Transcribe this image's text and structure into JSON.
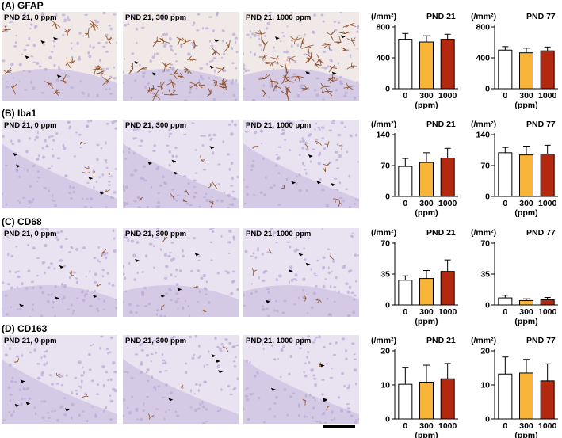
{
  "colors": {
    "c0": "#ffffff",
    "c300": "#f8b539",
    "c1000": "#b4280f",
    "stain_gfap": "#8b4a1f",
    "stain_iba1": "#7a3a18",
    "tissue_base": "#e9e3f1",
    "nuclei": "#b9acd6"
  },
  "panels": [
    {
      "label": "(A) GFAP",
      "images": [
        {
          "label": "PND 21, 0 ppm"
        },
        {
          "label": "PND 21, 300 ppm"
        },
        {
          "label": "PND 21, 1000 ppm"
        }
      ]
    },
    {
      "label": "(B) Iba1",
      "images": [
        {
          "label": "PND 21, 0 ppm"
        },
        {
          "label": "PND 21, 300 ppm"
        },
        {
          "label": "PND 21, 1000 ppm"
        }
      ]
    },
    {
      "label": "(C) CD68",
      "images": [
        {
          "label": "PND 21, 0 ppm"
        },
        {
          "label": "PND 21, 300 ppm"
        },
        {
          "label": "PND 21, 1000 ppm"
        }
      ]
    },
    {
      "label": "(D) CD163",
      "images": [
        {
          "label": "PND 21, 0 ppm"
        },
        {
          "label": "PND 21, 300 ppm"
        },
        {
          "label": "PND 21, 1000 ppm"
        }
      ]
    }
  ],
  "chart_data": [
    {
      "type": "bar",
      "panel": "(A) GFAP",
      "title": "PND 21",
      "ylabel": "(/mm²)",
      "xlabel": "(ppm)",
      "categories": [
        "0",
        "300",
        "1000"
      ],
      "values": [
        640,
        605,
        640
      ],
      "errors": [
        75,
        80,
        65
      ],
      "ylim": [
        0,
        800
      ],
      "yticks": [
        "0",
        "400",
        "800"
      ]
    },
    {
      "type": "bar",
      "panel": "(A) GFAP",
      "title": "PND 77",
      "ylabel": "(/mm²)",
      "xlabel": "(ppm)",
      "categories": [
        "0",
        "300",
        "1000"
      ],
      "values": [
        500,
        465,
        490
      ],
      "errors": [
        45,
        60,
        50
      ],
      "ylim": [
        0,
        800
      ],
      "yticks": [
        "0",
        "400",
        "800"
      ]
    },
    {
      "type": "bar",
      "panel": "(B) Iba1",
      "title": "PND 21",
      "ylabel": "(/mm²)",
      "xlabel": "(ppm)",
      "categories": [
        "0",
        "300",
        "1000"
      ],
      "values": [
        68,
        77,
        87
      ],
      "errors": [
        18,
        22,
        22
      ],
      "ylim": [
        0,
        140
      ],
      "yticks": [
        "0",
        "70",
        "140"
      ]
    },
    {
      "type": "bar",
      "panel": "(B) Iba1",
      "title": "PND 77",
      "ylabel": "(/mm²)",
      "xlabel": "(ppm)",
      "categories": [
        "0",
        "300",
        "1000"
      ],
      "values": [
        99,
        94,
        96
      ],
      "errors": [
        12,
        20,
        20
      ],
      "ylim": [
        0,
        140
      ],
      "yticks": [
        "0",
        "70",
        "140"
      ]
    },
    {
      "type": "bar",
      "panel": "(C) CD68",
      "title": "PND 21",
      "ylabel": "(/mm²)",
      "xlabel": "(ppm)",
      "categories": [
        "0",
        "300",
        "1000"
      ],
      "values": [
        28,
        30,
        38
      ],
      "errors": [
        5,
        9,
        13
      ],
      "ylim": [
        0,
        70
      ],
      "yticks": [
        "0",
        "35",
        "70"
      ]
    },
    {
      "type": "bar",
      "panel": "(C) CD68",
      "title": "PND 77",
      "ylabel": "(/mm²)",
      "xlabel": "(ppm)",
      "categories": [
        "0",
        "300",
        "1000"
      ],
      "values": [
        8,
        5,
        6
      ],
      "errors": [
        3,
        2,
        2.5
      ],
      "ylim": [
        0,
        70
      ],
      "yticks": [
        "0",
        "35",
        "70"
      ]
    },
    {
      "type": "bar",
      "panel": "(D) CD163",
      "title": "PND 21",
      "ylabel": "(/mm²)",
      "xlabel": "(ppm)",
      "categories": [
        "0",
        "300",
        "1000"
      ],
      "values": [
        10.2,
        10.8,
        11.8
      ],
      "errors": [
        5,
        5,
        4.5
      ],
      "ylim": [
        0,
        20
      ],
      "yticks": [
        "0",
        "10",
        "20"
      ]
    },
    {
      "type": "bar",
      "panel": "(D) CD163",
      "title": "PND 77",
      "ylabel": "(/mm²)",
      "xlabel": "(ppm)",
      "categories": [
        "0",
        "300",
        "1000"
      ],
      "values": [
        13.2,
        13.5,
        11.2
      ],
      "errors": [
        5,
        4,
        5
      ],
      "ylim": [
        0,
        20
      ],
      "yticks": [
        "0",
        "10",
        "20"
      ]
    }
  ]
}
